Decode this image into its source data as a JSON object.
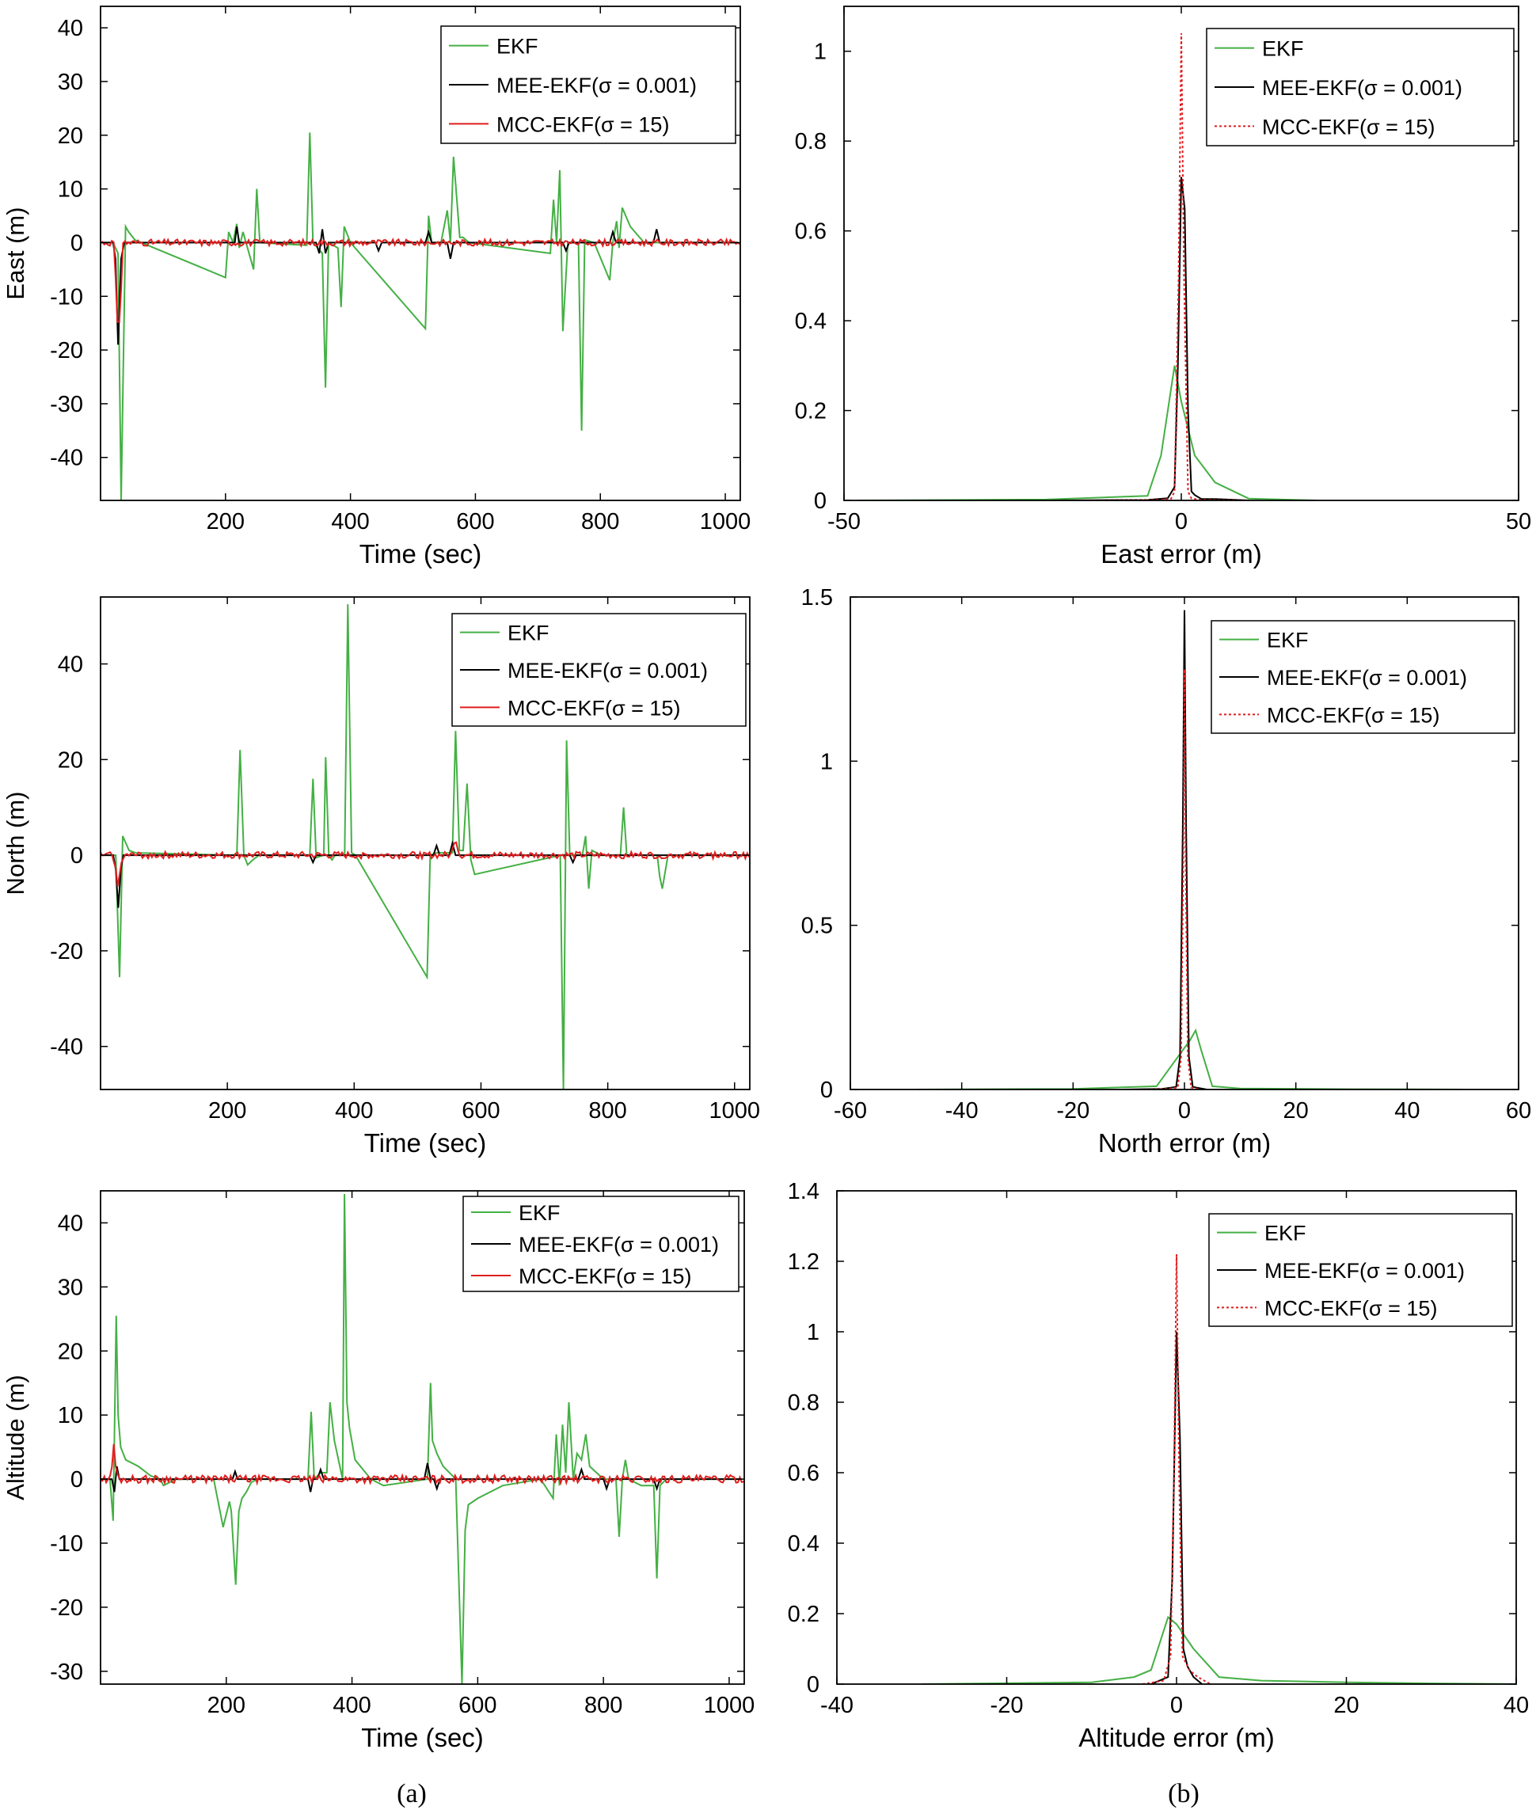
{
  "colors": {
    "ekf": "#44b044",
    "mee": "#000000",
    "mcc": "#e01e1e",
    "axis": "#000000"
  },
  "captions": {
    "a": "(a)",
    "b": "(b)"
  },
  "chart_data": [
    {
      "id": "east-time",
      "type": "line",
      "title": "",
      "xlabel": "Time (sec)",
      "ylabel": "East (m)",
      "xlim": [
        0,
        1024
      ],
      "ylim": [
        -48,
        44
      ],
      "xticks": [
        200,
        400,
        600,
        800,
        1000
      ],
      "yticks": [
        -40,
        -30,
        -20,
        -10,
        0,
        10,
        20,
        30,
        40
      ],
      "legend": [
        "EKF",
        "MEE-EKF(σ = 0.001)",
        "MCC-EKF(σ = 15)"
      ],
      "legend_position": "top-right",
      "series": [
        {
          "name": "EKF",
          "color_key": "ekf",
          "dash": "solid",
          "x": [
            0,
            20,
            28,
            33,
            40,
            45,
            55,
            200,
            205,
            212,
            218,
            222,
            228,
            245,
            250,
            255,
            330,
            335,
            340,
            355,
            360,
            365,
            380,
            385,
            390,
            400,
            520,
            525,
            530,
            545,
            555,
            560,
            565,
            575,
            580,
            590,
            720,
            725,
            730,
            735,
            740,
            748,
            765,
            770,
            775,
            790,
            815,
            820,
            826,
            830,
            835,
            848,
            870,
            1020
          ],
          "y": [
            0,
            0,
            -2,
            -48,
            3,
            2,
            0.5,
            -6.5,
            2,
            0,
            3.5,
            -1,
            2,
            -5,
            10,
            0,
            -0.5,
            20.5,
            0,
            -2,
            -27,
            0,
            -1,
            -12,
            3,
            0,
            -16,
            5,
            0,
            0,
            6,
            0,
            16,
            1,
            1,
            0,
            -2,
            8,
            0,
            13.5,
            -16.5,
            0,
            0,
            -35,
            0.5,
            0,
            -7,
            0,
            4,
            -1,
            6.5,
            3,
            0,
            0
          ]
        },
        {
          "name": "MEE-EKF(σ = 0.001)",
          "color_key": "mee",
          "dash": "solid",
          "x": [
            0,
            20,
            24,
            28,
            33,
            38,
            45,
            215,
            218,
            222,
            345,
            350,
            355,
            360,
            365,
            440,
            445,
            450,
            520,
            525,
            530,
            555,
            560,
            565,
            740,
            745,
            750,
            815,
            820,
            825,
            885,
            890,
            895,
            1020
          ],
          "y": [
            0,
            0,
            -3,
            -19,
            -3,
            0,
            0,
            0,
            3,
            0,
            0,
            -2,
            2.5,
            -2,
            0,
            0,
            -1.5,
            0,
            0,
            2,
            0,
            0,
            -3,
            0,
            0,
            -1.5,
            0,
            0,
            2,
            0,
            0,
            2.5,
            0,
            0
          ]
        },
        {
          "name": "MCC-EKF(σ = 15)",
          "color_key": "mcc",
          "dash": "solid",
          "noisy": true,
          "noise_amp": 0.6,
          "x": [
            0,
            22,
            25,
            28,
            32,
            36,
            40,
            1020
          ],
          "y": [
            0,
            0,
            -10,
            -18,
            -11,
            0,
            0,
            0
          ]
        }
      ]
    },
    {
      "id": "east-pdf",
      "type": "line",
      "title": "",
      "xlabel": "East error (m)",
      "ylabel": "",
      "xlim": [
        -50,
        50
      ],
      "ylim": [
        0,
        1.1
      ],
      "xticks": [
        -50,
        0,
        50
      ],
      "yticks": [
        0,
        0.2,
        0.4,
        0.6,
        0.8,
        1
      ],
      "legend": [
        "EKF",
        "MEE-EKF(σ = 0.001)",
        "MCC-EKF(σ = 15)"
      ],
      "legend_position": "top-right",
      "series": [
        {
          "name": "EKF",
          "color_key": "ekf",
          "dash": "solid",
          "x": [
            -48,
            -20,
            -5,
            -3,
            -1,
            0,
            2,
            5,
            10,
            20
          ],
          "y": [
            0,
            0.002,
            0.01,
            0.1,
            0.3,
            0.22,
            0.1,
            0.04,
            0.004,
            0
          ]
        },
        {
          "name": "MEE-EKF(σ = 0.001)",
          "color_key": "mee",
          "dash": "solid",
          "x": [
            -19,
            -5,
            -2,
            -1,
            -0.5,
            0,
            0.5,
            1,
            1.5,
            2,
            3,
            5,
            10
          ],
          "y": [
            0,
            0.001,
            0.005,
            0.03,
            0.3,
            0.72,
            0.65,
            0.2,
            0.02,
            0.012,
            0.003,
            0.003,
            0
          ]
        },
        {
          "name": "MCC-EKF(σ = 15)",
          "color_key": "mcc",
          "dash": "dotted",
          "x": [
            -15,
            -3,
            -1.5,
            -1,
            -0.4,
            0,
            0.4,
            1,
            1.5,
            3,
            10
          ],
          "y": [
            0,
            0.001,
            0.004,
            0.02,
            0.5,
            1.04,
            0.5,
            0.02,
            0.004,
            0.001,
            0
          ]
        }
      ]
    },
    {
      "id": "north-time",
      "type": "line",
      "title": "",
      "xlabel": "Time (sec)",
      "ylabel": "North (m)",
      "xlim": [
        0,
        1024
      ],
      "ylim": [
        -49,
        54
      ],
      "xticks": [
        200,
        400,
        600,
        800,
        1000
      ],
      "yticks": [
        -40,
        -20,
        0,
        20,
        40
      ],
      "legend": [
        "EKF",
        "MEE-EKF(σ = 0.001)",
        "MCC-EKF(σ = 15)"
      ],
      "legend_position": "top-right",
      "series": [
        {
          "name": "EKF",
          "color_key": "ekf",
          "dash": "solid",
          "x": [
            0,
            20,
            24,
            30,
            35,
            45,
            55,
            210,
            215,
            220,
            226,
            232,
            240,
            250,
            330,
            335,
            340,
            352,
            355,
            360,
            365,
            370,
            385,
            390,
            396,
            402,
            515,
            520,
            530,
            545,
            555,
            560,
            566,
            572,
            578,
            584,
            590,
            725,
            730,
            735,
            740,
            750,
            760,
            765,
            770,
            775,
            790,
            800,
            820,
            825,
            830,
            835,
            840,
            860,
            878,
            882,
            886,
            895,
            1020
          ],
          "y": [
            0,
            0,
            0,
            -25.5,
            4,
            1,
            0.5,
            0,
            0.5,
            22,
            0,
            -2,
            -1,
            0,
            0,
            16,
            -0.5,
            0,
            20.5,
            0,
            -1,
            0,
            0,
            52.5,
            0.5,
            0,
            -25.5,
            0,
            0.5,
            0.5,
            0.5,
            26,
            1,
            1,
            15,
            -1,
            -4,
            0,
            -49,
            24,
            0,
            0,
            0,
            4,
            -7,
            1,
            0,
            0,
            0,
            10,
            0,
            0,
            0,
            0,
            0,
            -4.5,
            -7,
            0,
            0
          ]
        },
        {
          "name": "MEE-EKF(σ = 0.001)",
          "color_key": "mee",
          "dash": "solid",
          "x": [
            0,
            20,
            24,
            28,
            32,
            36,
            40,
            330,
            335,
            340,
            525,
            530,
            535,
            550,
            555,
            560,
            740,
            745,
            750,
            1020
          ],
          "y": [
            0,
            0,
            -3,
            -11,
            -3,
            0,
            0,
            0,
            -1.5,
            0,
            0,
            2,
            0,
            0,
            2.5,
            0,
            0,
            -1.5,
            0,
            0
          ]
        },
        {
          "name": "MCC-EKF(σ = 15)",
          "color_key": "mcc",
          "dash": "solid",
          "noisy": true,
          "noise_amp": 0.7,
          "x": [
            0,
            20,
            24,
            27,
            30,
            34,
            38,
            554,
            557,
            560,
            563,
            566,
            1020
          ],
          "y": [
            0,
            0,
            -3,
            -7,
            -4,
            0,
            0,
            0,
            3,
            3.5,
            2,
            0,
            0
          ]
        }
      ]
    },
    {
      "id": "north-pdf",
      "type": "line",
      "title": "",
      "xlabel": "North error (m)",
      "ylabel": "",
      "xlim": [
        -60,
        60
      ],
      "ylim": [
        0,
        1.5
      ],
      "xticks": [
        -60,
        -40,
        -20,
        0,
        20,
        40,
        60
      ],
      "yticks": [
        0,
        0.5,
        1,
        1.5
      ],
      "legend": [
        "EKF",
        "MEE-EKF(σ = 0.001)",
        "MCC-EKF(σ = 15)"
      ],
      "legend_position": "top-right",
      "series": [
        {
          "name": "EKF",
          "color_key": "ekf",
          "dash": "solid",
          "x": [
            -48,
            -20,
            -5,
            -2,
            1,
            2,
            3,
            5,
            10,
            30,
            50
          ],
          "y": [
            0,
            0.002,
            0.01,
            0.08,
            0.15,
            0.18,
            0.12,
            0.01,
            0.003,
            0.001,
            0
          ]
        },
        {
          "name": "MEE-EKF(σ = 0.001)",
          "color_key": "mee",
          "dash": "solid",
          "x": [
            -11,
            -4,
            -1.5,
            -0.8,
            -0.3,
            0,
            0.3,
            0.8,
            1.5,
            4
          ],
          "y": [
            0,
            0.002,
            0.008,
            0.1,
            0.8,
            1.46,
            0.8,
            0.1,
            0.008,
            0
          ]
        },
        {
          "name": "MCC-EKF(σ = 15)",
          "color_key": "mcc",
          "dash": "dotted",
          "x": [
            -7,
            -3,
            -1.2,
            -0.6,
            -0.2,
            0,
            0.2,
            0.6,
            1.2,
            3
          ],
          "y": [
            0,
            0.002,
            0.006,
            0.1,
            0.7,
            1.28,
            0.7,
            0.1,
            0.006,
            0
          ]
        }
      ]
    },
    {
      "id": "altitude-time",
      "type": "line",
      "title": "",
      "xlabel": "Time (sec)",
      "ylabel": "Altitude (m)",
      "xlim": [
        0,
        1024
      ],
      "ylim": [
        -32,
        45
      ],
      "xticks": [
        200,
        400,
        600,
        800,
        1000
      ],
      "yticks": [
        -30,
        -20,
        -10,
        0,
        10,
        20,
        30,
        40
      ],
      "legend": [
        "EKF",
        "MEE-EKF(σ = 0.001)",
        "MCC-EKF(σ = 15)"
      ],
      "legend_position": "top-right",
      "series": [
        {
          "name": "EKF",
          "color_key": "ekf",
          "dash": "solid",
          "x": [
            0,
            15,
            20,
            25,
            28,
            32,
            40,
            60,
            80,
            95,
            100,
            120,
            180,
            195,
            205,
            208,
            215,
            220,
            225,
            232,
            240,
            250,
            330,
            335,
            340,
            350,
            360,
            365,
            372,
            385,
            388,
            392,
            396,
            405,
            430,
            450,
            520,
            525,
            528,
            535,
            545,
            565,
            575,
            580,
            585,
            600,
            640,
            700,
            720,
            725,
            730,
            735,
            740,
            745,
            752,
            758,
            765,
            772,
            778,
            800,
            820,
            825,
            830,
            835,
            840,
            860,
            875,
            880,
            885,
            890,
            900,
            1020
          ],
          "y": [
            0,
            0,
            -6.5,
            25.5,
            10,
            5,
            3,
            2,
            0.5,
            0,
            -1,
            0,
            0,
            -7.5,
            -3.5,
            -5,
            -16.5,
            -5,
            -3,
            -2,
            -0.5,
            0,
            0,
            10.5,
            0,
            1,
            1,
            12,
            6,
            0,
            44.5,
            12,
            8,
            3,
            0,
            -1,
            0,
            15,
            6,
            4,
            2,
            0,
            -32,
            -8,
            -4,
            -3,
            -1,
            0,
            -3,
            7,
            -1,
            8.5,
            1,
            12,
            0,
            4,
            3,
            7,
            2,
            0,
            0,
            -9,
            0,
            3,
            0,
            -1,
            -1,
            -1,
            -15.5,
            -1,
            0,
            0
          ]
        },
        {
          "name": "MEE-EKF(σ = 0.001)",
          "color_key": "mee",
          "dash": "solid",
          "x": [
            0,
            18,
            22,
            26,
            30,
            210,
            214,
            218,
            330,
            334,
            338,
            345,
            350,
            355,
            515,
            520,
            525,
            530,
            535,
            540,
            760,
            765,
            770,
            800,
            805,
            810,
            880,
            885,
            890,
            1020
          ],
          "y": [
            0,
            0,
            -2,
            2,
            0,
            0,
            1.2,
            0,
            0,
            -2,
            0,
            0,
            1.5,
            0,
            0,
            2.5,
            0,
            0,
            -1.5,
            0,
            0,
            1.5,
            0,
            0,
            -1.5,
            0,
            0,
            -1.5,
            0,
            0
          ]
        },
        {
          "name": "MCC-EKF(σ = 15)",
          "color_key": "mcc",
          "dash": "solid",
          "noisy": true,
          "noise_amp": 0.6,
          "x": [
            0,
            15,
            18,
            21,
            24,
            28,
            35,
            1020
          ],
          "y": [
            0,
            0,
            2,
            5.5,
            2,
            0,
            0,
            0
          ]
        }
      ]
    },
    {
      "id": "altitude-pdf",
      "type": "line",
      "title": "",
      "xlabel": "Altitude error (m)",
      "ylabel": "",
      "xlim": [
        -40,
        40
      ],
      "ylim": [
        0,
        1.4
      ],
      "xticks": [
        -40,
        -20,
        0,
        20,
        40
      ],
      "yticks": [
        0,
        0.2,
        0.4,
        0.6,
        0.8,
        1,
        1.2,
        1.4
      ],
      "legend": [
        "EKF",
        "MEE-EKF(σ = 0.001)",
        "MCC-EKF(σ = 15)"
      ],
      "legend_position": "top-right",
      "series": [
        {
          "name": "EKF",
          "color_key": "ekf",
          "dash": "solid",
          "x": [
            -30,
            -10,
            -5,
            -3,
            -1,
            0,
            2,
            5,
            10,
            20,
            30,
            40
          ],
          "y": [
            0,
            0.005,
            0.02,
            0.04,
            0.19,
            0.17,
            0.1,
            0.02,
            0.01,
            0.005,
            0.002,
            0
          ]
        },
        {
          "name": "MEE-EKF(σ = 0.001)",
          "color_key": "mee",
          "dash": "solid",
          "x": [
            -3,
            -1,
            -0.5,
            0,
            0.4,
            0.8,
            1.3,
            2,
            3
          ],
          "y": [
            0,
            0.02,
            0.3,
            1.0,
            0.7,
            0.1,
            0.05,
            0.02,
            0
          ]
        },
        {
          "name": "MCC-EKF(σ = 15)",
          "color_key": "mcc",
          "dash": "dotted",
          "x": [
            -4,
            -1.5,
            -0.7,
            -0.3,
            0,
            0.3,
            0.7,
            1.5,
            2.5,
            4
          ],
          "y": [
            0,
            0.01,
            0.08,
            0.6,
            1.22,
            0.6,
            0.08,
            0.04,
            0.02,
            0
          ]
        }
      ]
    }
  ]
}
